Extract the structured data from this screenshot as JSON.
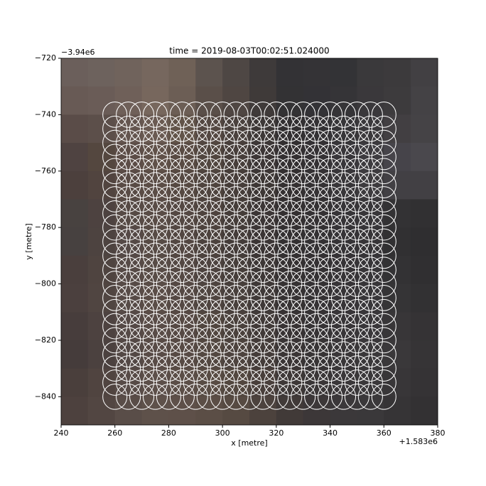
{
  "chart_data": {
    "type": "image-circles",
    "title": "time = 2019-08-03T00:02:51.024000",
    "x_label": "x [metre]",
    "y_label": "y [metre]",
    "x_offset_text": "+1.583e6",
    "y_offset_text": "−3.94e6",
    "xlim": [
      240,
      380
    ],
    "ylim": [
      -850,
      -720
    ],
    "xticks": [
      240,
      260,
      280,
      300,
      320,
      340,
      360,
      380
    ],
    "yticks": [
      {
        "value": -720,
        "label": "−720"
      },
      {
        "value": -740,
        "label": "−740"
      },
      {
        "value": -760,
        "label": "−760"
      },
      {
        "value": -780,
        "label": "−780"
      },
      {
        "value": -800,
        "label": "−800"
      },
      {
        "value": -820,
        "label": "−820"
      },
      {
        "value": -840,
        "label": "−840"
      }
    ],
    "image": {
      "colors": [
        [
          "#6b5f5b",
          "#6d625d",
          "#70635c",
          "#76675e",
          "#6f6157",
          "#5c534e",
          "#4e4744",
          "#3e3a3a",
          "#333235",
          "#343336",
          "#333336",
          "#3a393b",
          "#3c3a3c",
          "#424043"
        ],
        [
          "#685a55",
          "#6a5c57",
          "#6f6059",
          "#77675d",
          "#6c5e55",
          "#5a4f49",
          "#4f4642",
          "#3f3a39",
          "#333234",
          "#333236",
          "#353437",
          "#3a383b",
          "#3d3b3d",
          "#444245"
        ],
        [
          "#5a4c48",
          "#5c4f4a",
          "#64554f",
          "#6a5a52",
          "#625449",
          "#544842",
          "#4a413d",
          "#3d3837",
          "#322f31",
          "#333134",
          "#363538",
          "#3b393c",
          "#423f42",
          "#454346"
        ],
        [
          "#4f4341",
          "#54473f",
          "#5c4d47",
          "#605149",
          "#594b43",
          "#51463f",
          "#473e3a",
          "#3c3636",
          "#332f31",
          "#343134",
          "#38363a",
          "#3d3b3f",
          "#46444a",
          "#4a484d"
        ],
        [
          "#4c403d",
          "#51443f",
          "#594b45",
          "#5b4d46",
          "#564942",
          "#4f443e",
          "#463d39",
          "#3d3735",
          "#343031",
          "#353234",
          "#383639",
          "#3d3b3e",
          "#424044",
          "#424044"
        ],
        [
          "#484240",
          "#4d4240",
          "#564a45",
          "#594c46",
          "#544843",
          "#4e433e",
          "#453d39",
          "#3c3636",
          "#343031",
          "#343133",
          "#363437",
          "#383639",
          "#333234",
          "#313032"
        ],
        [
          "#474140",
          "#4d4340",
          "#554946",
          "#574b45",
          "#534742",
          "#4c423d",
          "#443c39",
          "#3b3535",
          "#333031",
          "#333133",
          "#353336",
          "#363437",
          "#313032",
          "#2f2e30"
        ],
        [
          "#4a3f3d",
          "#4f4440",
          "#564a46",
          "#584c46",
          "#544843",
          "#4d433f",
          "#463e3a",
          "#3d3736",
          "#353132",
          "#343133",
          "#363336",
          "#373538",
          "#333234",
          "#302f31"
        ],
        [
          "#4b403e",
          "#504541",
          "#574b47",
          "#5a4d47",
          "#554944",
          "#4f4540",
          "#48403c",
          "#3f3938",
          "#363233",
          "#353234",
          "#373437",
          "#383639",
          "#353436",
          "#323133"
        ],
        [
          "#473d3c",
          "#4d4240",
          "#554946",
          "#594c47",
          "#564944",
          "#51463f",
          "#4a413c",
          "#413a38",
          "#383334",
          "#363335",
          "#383538",
          "#39373a",
          "#383638",
          "#353335"
        ],
        [
          "#453c3b",
          "#4b413f",
          "#534845",
          "#584b46",
          "#574a44",
          "#534841",
          "#4d433e",
          "#443c39",
          "#3a3535",
          "#373435",
          "#393638",
          "#3a383a",
          "#3a383a",
          "#363436"
        ],
        [
          "#4a3f3c",
          "#504440",
          "#574b47",
          "#5c4f49",
          "#5b4e47",
          "#584c44",
          "#52473f",
          "#493f3b",
          "#3e3837",
          "#3a3637",
          "#3a3739",
          "#3a383a",
          "#383638",
          "#353335"
        ],
        [
          "#4d413e",
          "#524642",
          "#594d48",
          "#5e514a",
          "#5e5049",
          "#5b4e46",
          "#564a42",
          "#4c423d",
          "#413a38",
          "#3c3738",
          "#3b383a",
          "#3a383a",
          "#363436",
          "#333133"
        ]
      ]
    },
    "circles": {
      "x": [
        260,
        265,
        270,
        275,
        280,
        285,
        290,
        295,
        300,
        305,
        310,
        315,
        320,
        325,
        330,
        335,
        340,
        345,
        350,
        355,
        360
      ],
      "y": [
        -740,
        -745,
        -750,
        -755,
        -760,
        -765,
        -770,
        -775,
        -780,
        -785,
        -790,
        -795,
        -800,
        -805,
        -810,
        -815,
        -820,
        -825,
        -830,
        -835,
        -840
      ],
      "radius": 4.5,
      "color": "#ffffff"
    }
  }
}
